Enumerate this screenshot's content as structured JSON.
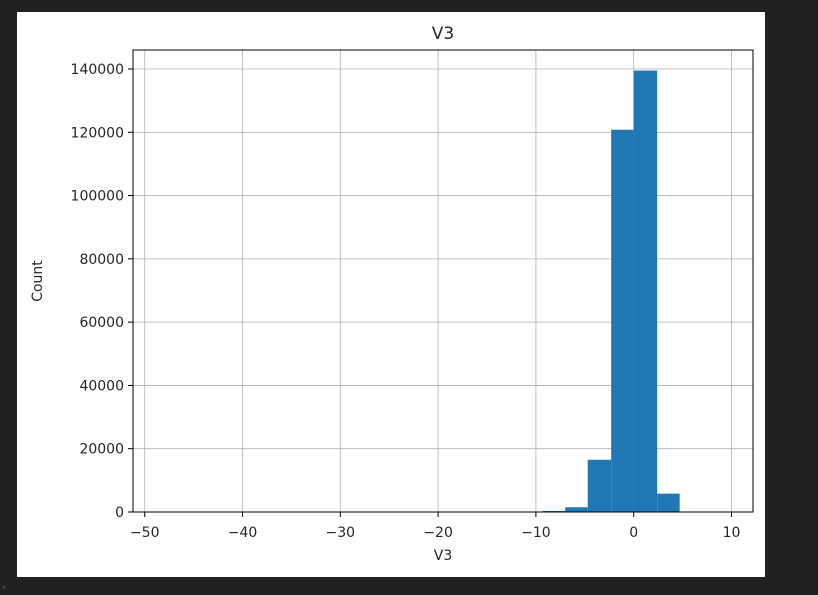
{
  "chart_data": {
    "type": "histogram",
    "title": "V3",
    "xlabel": "V3",
    "ylabel": "Count",
    "xlim": [
      -51.2,
      12.2
    ],
    "ylim": [
      0,
      146000
    ],
    "xticks": [
      -50,
      -40,
      -30,
      -20,
      -10,
      0,
      10
    ],
    "xtick_labels": [
      "−50",
      "−40",
      "−30",
      "−20",
      "−10",
      "0",
      "10"
    ],
    "yticks": [
      0,
      20000,
      40000,
      60000,
      80000,
      100000,
      120000,
      140000
    ],
    "ytick_labels": [
      "0",
      "20000",
      "40000",
      "60000",
      "80000",
      "100000",
      "120000",
      "140000"
    ],
    "grid": true,
    "bar_color": "#1f77b4",
    "bins": [
      {
        "x0": -11.5,
        "x1": -9.3,
        "count": 120
      },
      {
        "x0": -9.3,
        "x1": -7.0,
        "count": 350
      },
      {
        "x0": -7.0,
        "x1": -4.7,
        "count": 1500
      },
      {
        "x0": -4.7,
        "x1": -2.3,
        "count": 16500
      },
      {
        "x0": -2.3,
        "x1": 0.0,
        "count": 120800
      },
      {
        "x0": 0.0,
        "x1": 2.4,
        "count": 139500
      },
      {
        "x0": 2.4,
        "x1": 4.7,
        "count": 5800
      }
    ]
  },
  "page": {
    "scroll_marker": "‹"
  }
}
